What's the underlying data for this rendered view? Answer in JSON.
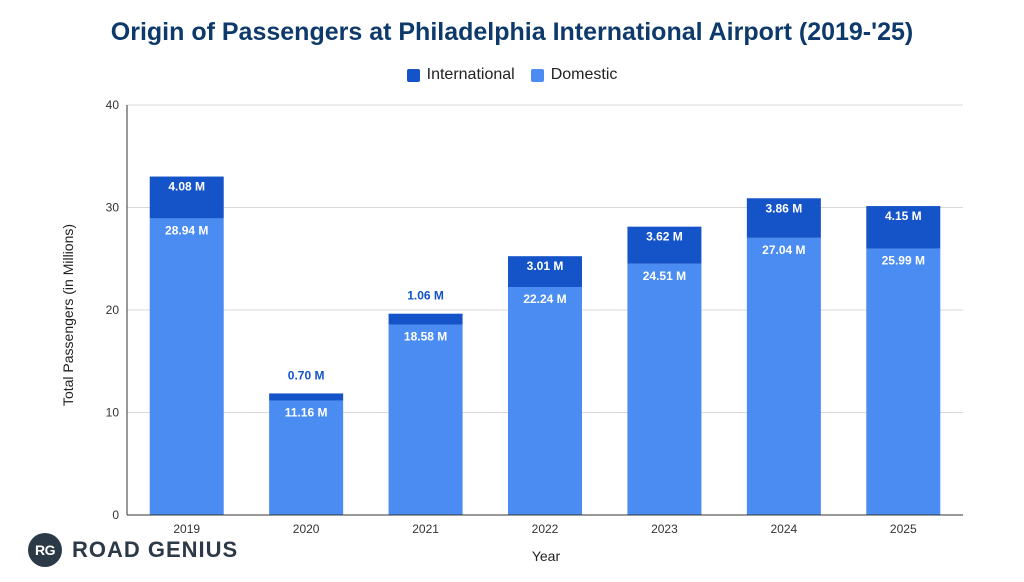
{
  "colors": {
    "international": "#1453c8",
    "domestic": "#4a8cf2",
    "grid": "#d9d9d9",
    "axis": "#333333",
    "international_label": "#1453c8",
    "brand": "#2c3a47"
  },
  "brand": {
    "badge": "RG",
    "name": "ROAD GENIUS"
  },
  "chart_data": {
    "type": "bar",
    "stacked": true,
    "title": "Origin of Passengers at Philadelphia International Airport (2019-'25)",
    "xlabel": "Year",
    "ylabel": "Total Passengers (in Millions)",
    "ylim": [
      0,
      40
    ],
    "yticks": [
      0,
      10,
      20,
      30,
      40
    ],
    "grid": true,
    "legend_position": "top-center",
    "categories": [
      "2019",
      "2020",
      "2021",
      "2022",
      "2023",
      "2024",
      "2025"
    ],
    "series": [
      {
        "name": "Domestic",
        "values": [
          28.94,
          11.16,
          18.58,
          22.24,
          24.51,
          27.04,
          25.99
        ],
        "labels": [
          "28.94 M",
          "11.16 M",
          "18.58 M",
          "22.24 M",
          "24.51 M",
          "27.04 M",
          "25.99 M"
        ]
      },
      {
        "name": "International",
        "values": [
          4.08,
          0.7,
          1.06,
          3.01,
          3.62,
          3.86,
          4.15
        ],
        "labels": [
          "4.08 M",
          "0.70 M",
          "1.06 M",
          "3.01 M",
          "3.62 M",
          "3.86 M",
          "4.15 M"
        ]
      }
    ]
  }
}
